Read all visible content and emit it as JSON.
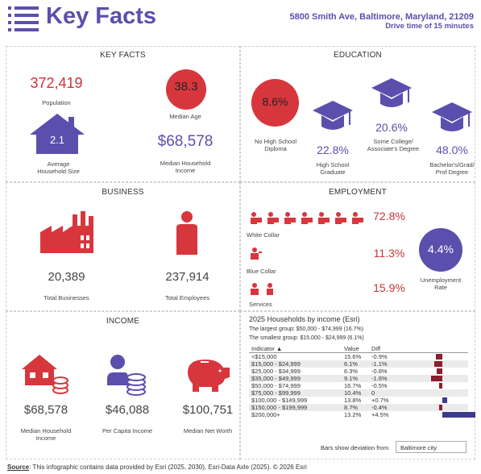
{
  "header": {
    "title": "Key Facts",
    "address": "5800 Smith Ave, Baltimore, Maryland, 21209",
    "drive_time": "Drive time of 15 minutes"
  },
  "key_facts": {
    "title": "KEY FACTS",
    "population_value": "372,419",
    "population_label": "Population",
    "median_age_value": "38.3",
    "median_age_label": "Median Age",
    "household_size_value": "2.1",
    "household_size_label1": "Average",
    "household_size_label2": "Household Size",
    "median_income_value": "$68,578",
    "median_income_label1": "Median Household",
    "median_income_label2": "Income"
  },
  "education": {
    "title": "EDUCATION",
    "no_hs_value": "8.6%",
    "no_hs_label1": "No High School",
    "no_hs_label2": "Diploma",
    "hs_value": "22.8%",
    "hs_label1": "High School",
    "hs_label2": "Graduate",
    "some_college_value": "20.6%",
    "some_college_label1": "Some College/",
    "some_college_label2": "Associate's Degree",
    "bachelors_value": "48.0%",
    "bachelors_label1": "Bachelor's/Grad/",
    "bachelors_label2": "Prof Degree"
  },
  "business": {
    "title": "BUSINESS",
    "total_businesses_value": "20,389",
    "total_businesses_label": "Total Businesses",
    "total_employees_value": "237,914",
    "total_employees_label": "Total Employees"
  },
  "employment": {
    "title": "EMPLOYMENT",
    "white_collar_value": "72.8%",
    "white_collar_label": "White Collar",
    "blue_collar_value": "11.3%",
    "blue_collar_label": "Blue Collar",
    "services_value": "15.9%",
    "services_label": "Services",
    "unemployment_value": "4.4%",
    "unemployment_label1": "Unemployment",
    "unemployment_label2": "Rate"
  },
  "income": {
    "title": "INCOME",
    "median_hh_value": "$68,578",
    "median_hh_label1": "Median Household",
    "median_hh_label2": "Income",
    "per_capita_value": "$46,088",
    "per_capita_label": "Per Capita Income",
    "net_worth_value": "$100,751",
    "net_worth_label": "Median Net Worth"
  },
  "households_by_income": {
    "title": "2025 Households by income (Esri)",
    "largest": "The largest group: $50,000 - $74,999 (16.7%)",
    "smallest": "The smallest group: $15,000 - $24,999 (6.1%)",
    "col_indicator": "Indicator ▲",
    "col_value": "Value",
    "col_diff": "Diff",
    "rows": [
      {
        "indicator": "<$15,000",
        "value": "15.6%",
        "diff": "-0.9%",
        "diff_num": -0.9
      },
      {
        "indicator": "$15,000 - $24,999",
        "value": "6.1%",
        "diff": "-1.1%",
        "diff_num": -1.1
      },
      {
        "indicator": "$25,000 - $34,999",
        "value": "6.3%",
        "diff": "-0.8%",
        "diff_num": -0.8
      },
      {
        "indicator": "$35,000 - $49,999",
        "value": "9.1%",
        "diff": "-1.6%",
        "diff_num": -1.6
      },
      {
        "indicator": "$50,000 - $74,999",
        "value": "16.7%",
        "diff": "-0.5%",
        "diff_num": -0.5
      },
      {
        "indicator": "$75,000 - $99,999",
        "value": "10.4%",
        "diff": "0",
        "diff_num": 0
      },
      {
        "indicator": "$100,000 - $149,999",
        "value": "13.8%",
        "diff": "+0.7%",
        "diff_num": 0.7
      },
      {
        "indicator": "$150,000 - $199,999",
        "value": "8.7%",
        "diff": "-0.4%",
        "diff_num": -0.4
      },
      {
        "indicator": "$200,000+",
        "value": "13.2%",
        "diff": "+4.5%",
        "diff_num": 4.5
      }
    ],
    "deviation_label": "Bars show deviation from",
    "deviation_selected": "Baltimore city"
  },
  "footer": {
    "source_label": "Source",
    "source_text": ": This infographic contains data provided by Esri (2025, 2030), Esri-Data Axle (2025). © 2026 Esri"
  },
  "colors": {
    "purple": "#5b4fad",
    "red": "#c9333a",
    "bar_negative": "#8b1f2b",
    "bar_positive": "#3c3a8c"
  },
  "icons": [
    "menu-icon",
    "house-icon",
    "graduation-cap-icon",
    "factory-icon",
    "person-icon",
    "worker-icon",
    "money-house-icon",
    "coins-person-icon",
    "piggy-bank-icon"
  ]
}
